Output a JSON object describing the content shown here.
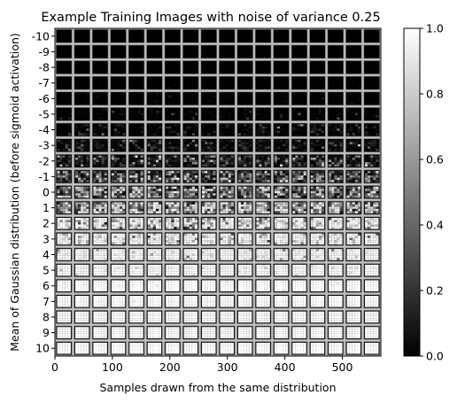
{
  "chart_data": {
    "type": "heatmap",
    "title": "Example Training Images with noise of variance 0.25",
    "xlabel": "Samples drawn from the same distribution",
    "ylabel": "Mean of Gaussian distribution (before sigmoid activation)",
    "xlim": [
      0,
      567
    ],
    "x_ticks": [
      0,
      100,
      200,
      300,
      400,
      500
    ],
    "row_labels": [
      "-10",
      "-9",
      "-8",
      "-7",
      "-6",
      "-5",
      "-4",
      "-3",
      "-2",
      "-1",
      "0",
      "1",
      "2",
      "3",
      "4",
      "5",
      "6",
      "7",
      "8",
      "9",
      "10"
    ],
    "row_means": [
      -10,
      -9,
      -8,
      -7,
      -6,
      -5,
      -4,
      -3,
      -2,
      -1,
      0,
      1,
      2,
      3,
      4,
      5,
      6,
      7,
      8,
      9,
      10
    ],
    "noise_variance": 0.25,
    "samples_per_row": 18,
    "grid": false,
    "colorbar": {
      "cmap": "gray",
      "vmin": 0.0,
      "vmax": 1.0,
      "ticks": [
        "0.0",
        "0.2",
        "0.4",
        "0.6",
        "0.8",
        "1.0"
      ]
    }
  }
}
